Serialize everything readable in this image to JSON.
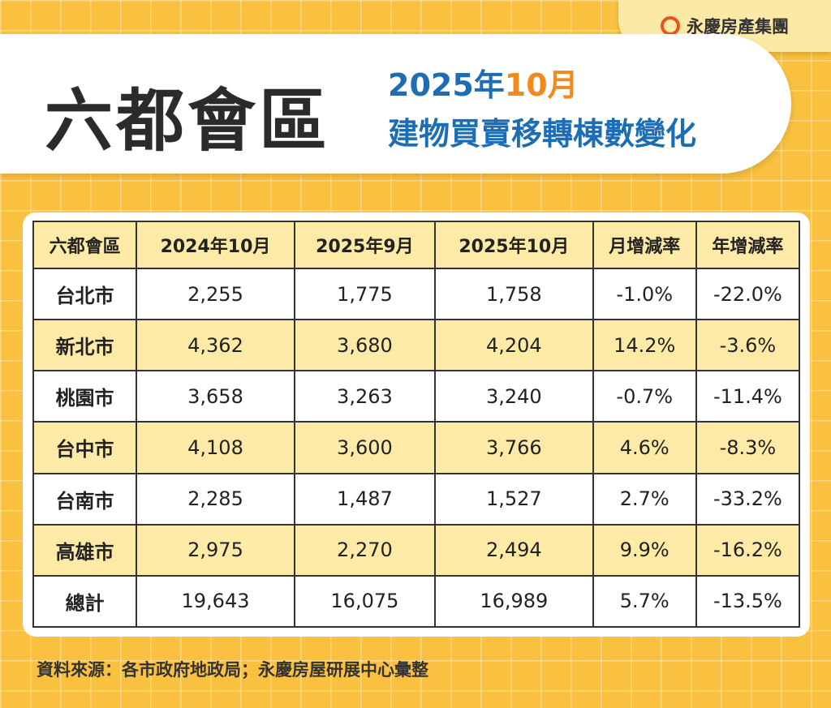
{
  "brand": "永慶房產集團",
  "header": {
    "title": "六都會區",
    "subtitle_year": "2025年",
    "subtitle_month": "10月",
    "subtitle_line2": "建物買賣移轉棟數變化"
  },
  "table": {
    "columns": [
      "六都會區",
      "2024年10月",
      "2025年9月",
      "2025年10月",
      "月增減率",
      "年增減率"
    ],
    "rows": [
      [
        "台北市",
        "2,255",
        "1,775",
        "1,758",
        "-1.0%",
        "-22.0%"
      ],
      [
        "新北市",
        "4,362",
        "3,680",
        "4,204",
        "14.2%",
        "-3.6%"
      ],
      [
        "桃園市",
        "3,658",
        "3,263",
        "3,240",
        "-0.7%",
        "-11.4%"
      ],
      [
        "台中市",
        "4,108",
        "3,600",
        "3,766",
        "4.6%",
        "-8.3%"
      ],
      [
        "台南市",
        "2,285",
        "1,487",
        "1,527",
        "2.7%",
        "-33.2%"
      ],
      [
        "高雄市",
        "2,975",
        "2,270",
        "2,494",
        "9.9%",
        "-16.2%"
      ],
      [
        "總計",
        "19,643",
        "16,075",
        "16,989",
        "5.7%",
        "-13.5%"
      ]
    ]
  },
  "source": "資料來源：各市政府地政局；永慶房屋研展中心彙整"
}
